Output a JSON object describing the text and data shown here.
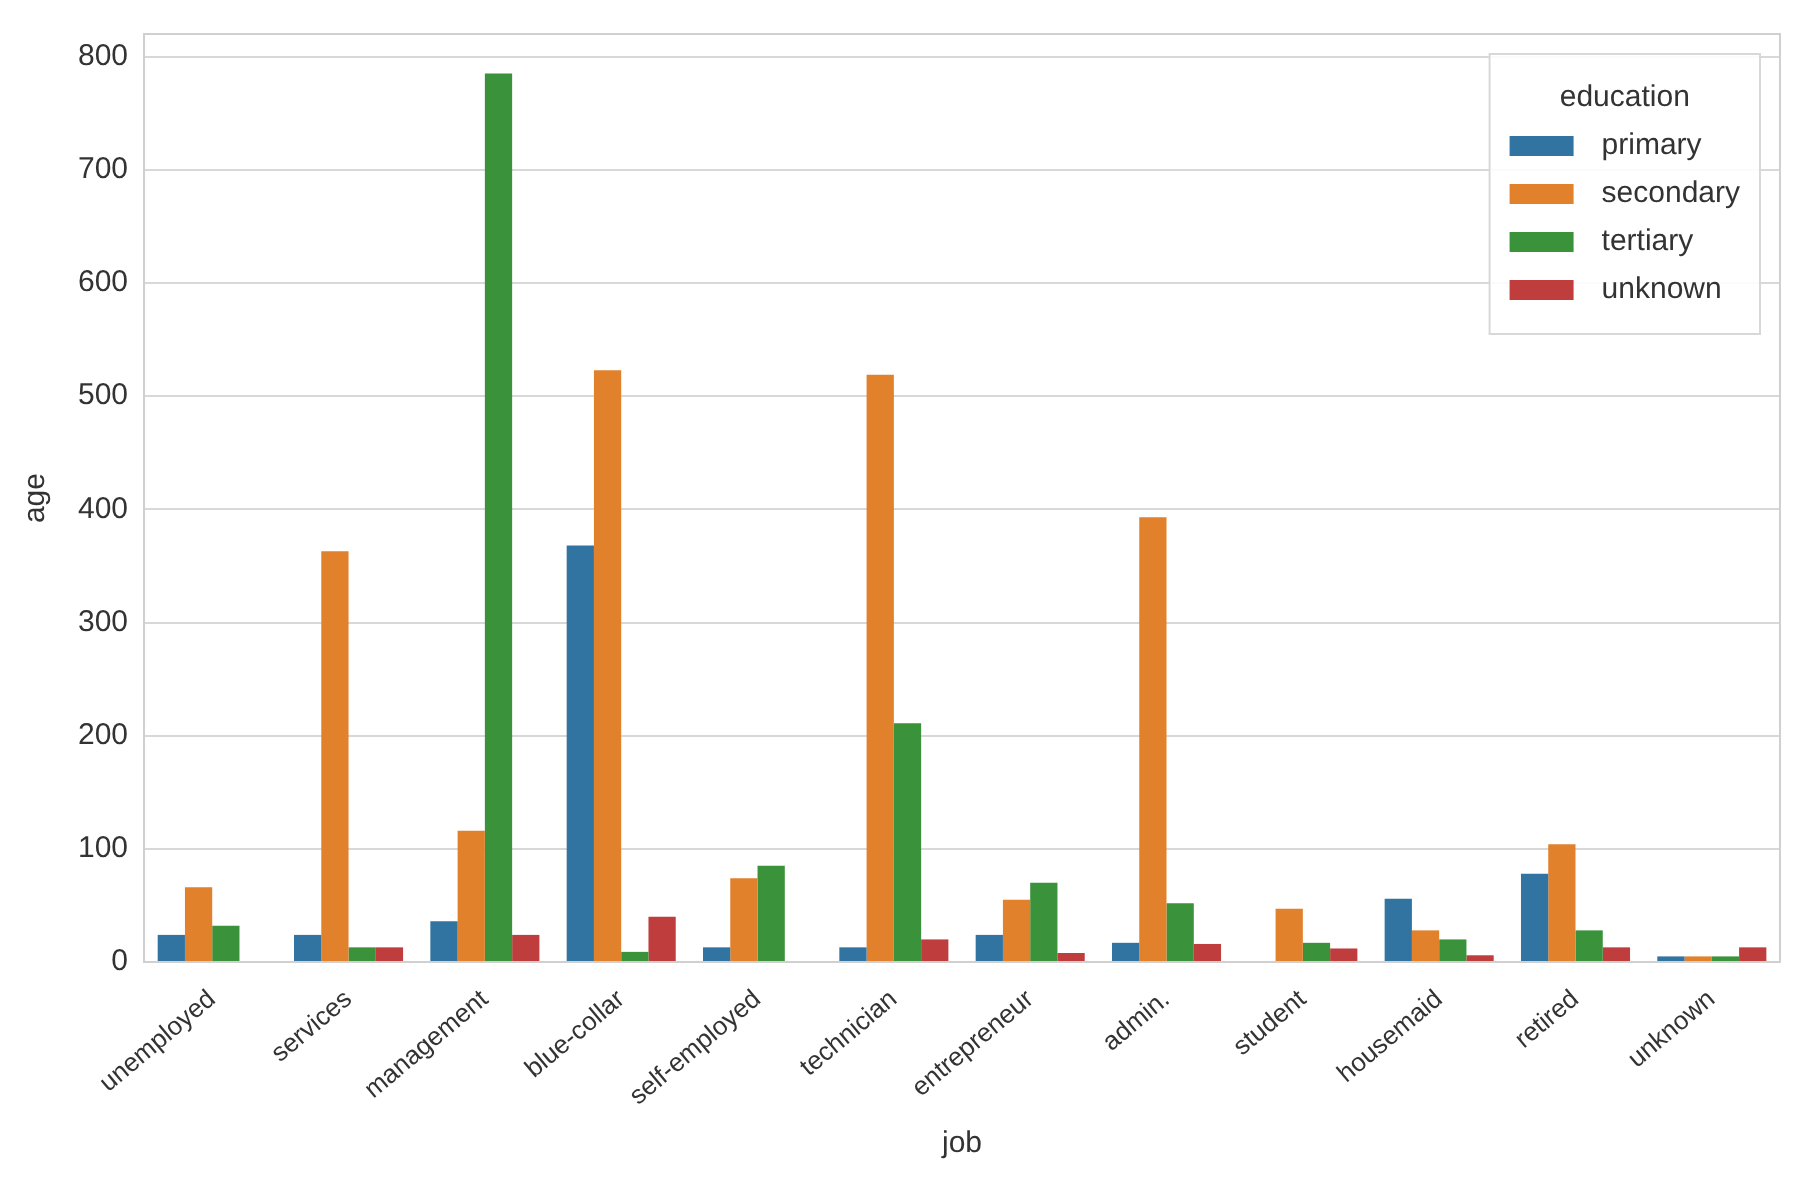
{
  "chart_data": {
    "type": "bar",
    "xlabel": "job",
    "ylabel": "age",
    "legend_title": "education",
    "categories": [
      "unemployed",
      "services",
      "management",
      "blue-collar",
      "self-employed",
      "technician",
      "entrepreneur",
      "admin.",
      "student",
      "housemaid",
      "retired",
      "unknown"
    ],
    "series": [
      {
        "name": "primary",
        "color": "#3274a1",
        "values": [
          24,
          24,
          36,
          368,
          13,
          13,
          24,
          17,
          0,
          56,
          78,
          5
        ]
      },
      {
        "name": "secondary",
        "color": "#e1812c",
        "values": [
          66,
          363,
          116,
          523,
          74,
          519,
          55,
          393,
          47,
          28,
          104,
          5
        ]
      },
      {
        "name": "tertiary",
        "color": "#3a923a",
        "values": [
          32,
          13,
          785,
          9,
          85,
          211,
          70,
          52,
          17,
          20,
          28,
          5
        ]
      },
      {
        "name": "unknown",
        "color": "#c03d3e",
        "values": [
          0,
          13,
          24,
          40,
          0,
          20,
          8,
          16,
          12,
          6,
          13,
          13
        ]
      }
    ],
    "ylim": [
      0,
      820
    ],
    "yticks": [
      0,
      100,
      200,
      300,
      400,
      500,
      600,
      700,
      800
    ],
    "grid": "y",
    "legend": "top right"
  }
}
